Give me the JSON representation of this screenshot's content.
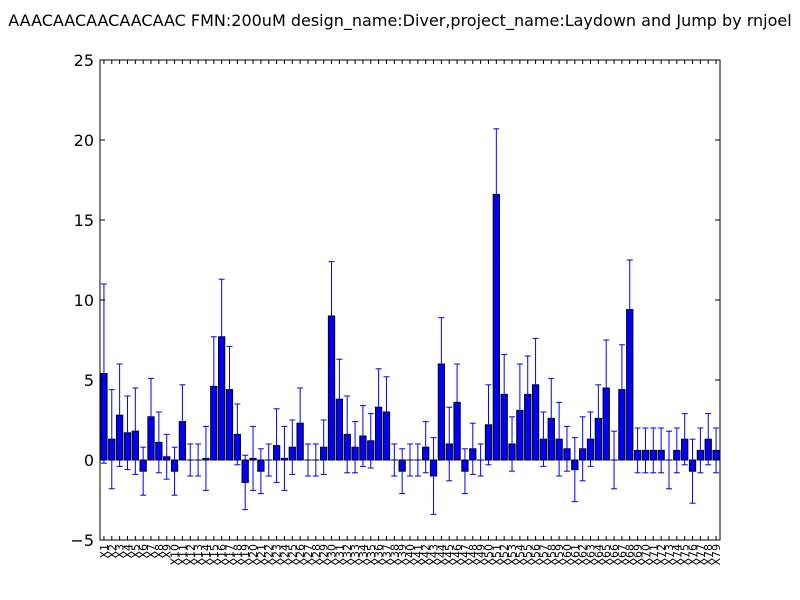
{
  "chart_data": {
    "type": "bar",
    "title": "AAACAACAACAACAAC  FMN:200uM  design_name:Diver,project_name:Laydown and Jump by rnjoel",
    "xlabel": "",
    "ylabel": "",
    "ylim": [
      -5,
      25
    ],
    "yticks": [
      -5,
      0,
      5,
      10,
      15,
      20,
      25
    ],
    "grid": false,
    "bar_color": "#0000ff",
    "error_color": "#0000ff",
    "categories": [
      "X1",
      "X2",
      "X3",
      "X4",
      "X5",
      "X6",
      "X7",
      "X8",
      "X9",
      "X10",
      "X11",
      "X12",
      "X13",
      "X14",
      "X15",
      "X16",
      "X17",
      "X18",
      "X19",
      "X20",
      "X21",
      "X22",
      "X23",
      "X24",
      "X25",
      "X26",
      "X27",
      "X28",
      "X29",
      "X30",
      "X31",
      "X32",
      "X33",
      "X34",
      "X35",
      "X36",
      "X37",
      "X38",
      "X39",
      "X40",
      "X41",
      "X42",
      "X43",
      "X44",
      "X45",
      "X46",
      "X47",
      "X48",
      "X49",
      "X50",
      "X51",
      "X52",
      "X53",
      "X54",
      "X55",
      "X56",
      "X57",
      "X58",
      "X59",
      "X60",
      "X61",
      "X62",
      "X63",
      "X64",
      "X65",
      "X66",
      "X67",
      "X68",
      "X69",
      "X70",
      "X71",
      "X72",
      "X73",
      "X74",
      "X75",
      "X76",
      "X77",
      "X78",
      "X79"
    ],
    "values": [
      5.4,
      1.3,
      2.8,
      1.7,
      1.8,
      -0.7,
      2.7,
      1.1,
      0.2,
      -0.7,
      2.4,
      0,
      0,
      0.1,
      4.6,
      7.7,
      4.4,
      1.6,
      -1.4,
      0.1,
      -0.7,
      0,
      0.9,
      0.1,
      0.8,
      2.3,
      0,
      0,
      0.8,
      9.0,
      3.8,
      1.6,
      0.8,
      1.5,
      1.2,
      3.3,
      3.0,
      0,
      -0.7,
      0,
      0,
      0.8,
      -1.0,
      6.0,
      1.0,
      3.6,
      -0.7,
      0.7,
      0,
      2.2,
      16.6,
      4.1,
      1.0,
      3.1,
      4.1,
      4.7,
      1.3,
      2.6,
      1.3,
      0.7,
      -0.6,
      0.7,
      1.3,
      2.6,
      4.5,
      0,
      4.4,
      9.4,
      0.6,
      0.6,
      0.6,
      0.6,
      0,
      0.6,
      1.3,
      -0.7,
      0.6,
      1.3,
      0.6
    ],
    "errors": [
      5.6,
      3.1,
      3.2,
      2.3,
      2.7,
      1.5,
      2.4,
      1.9,
      1.4,
      1.5,
      2.3,
      1.0,
      1.0,
      2.0,
      3.1,
      3.6,
      2.7,
      1.9,
      1.7,
      2.0,
      1.4,
      1.0,
      2.3,
      2.0,
      1.7,
      2.2,
      1.0,
      1.0,
      1.7,
      3.4,
      2.5,
      2.4,
      1.6,
      1.9,
      1.7,
      2.4,
      2.2,
      1.0,
      1.4,
      1.0,
      1.0,
      1.6,
      2.4,
      2.9,
      2.3,
      2.4,
      1.4,
      1.6,
      1.0,
      2.5,
      4.1,
      2.5,
      1.7,
      2.9,
      2.4,
      2.9,
      1.7,
      2.5,
      2.3,
      1.4,
      2.0,
      2.0,
      1.7,
      2.1,
      3.0,
      1.8,
      2.8,
      3.1,
      1.4,
      1.4,
      1.4,
      1.4,
      1.8,
      1.4,
      1.6,
      2.0,
      1.4,
      1.6,
      1.4
    ]
  }
}
